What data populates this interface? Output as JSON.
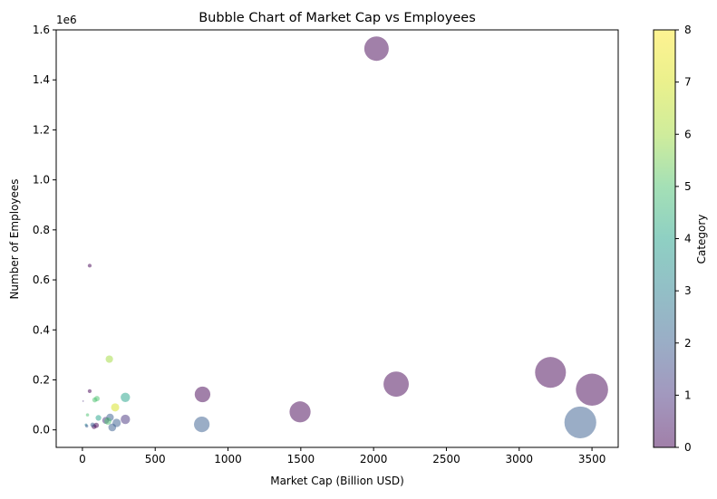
{
  "chart_data": {
    "type": "scatter",
    "title": "Bubble Chart of Market Cap vs Employees",
    "xlabel": "Market Cap (Billion USD)",
    "ylabel": "Number of Employees",
    "y_offset_label": "1e6",
    "xlim": [
      -180,
      3680
    ],
    "ylim": [
      -70000,
      1600000
    ],
    "xticks": [
      0,
      500,
      1000,
      1500,
      2000,
      2500,
      3000,
      3500
    ],
    "xtick_labels": [
      "0",
      "500",
      "1000",
      "1500",
      "2000",
      "2500",
      "3000",
      "3500"
    ],
    "yticks": [
      0,
      200000,
      400000,
      600000,
      800000,
      1000000,
      1200000,
      1400000,
      1600000
    ],
    "ytick_labels": [
      "0.0",
      "0.2",
      "0.4",
      "0.6",
      "0.8",
      "1.0",
      "1.2",
      "1.4",
      "1.6"
    ],
    "grid": false,
    "colorbar": {
      "label": "Category",
      "range": [
        0,
        8
      ],
      "ticks": [
        0,
        1,
        2,
        3,
        4,
        5,
        6,
        7,
        8
      ],
      "colormap": "viridis",
      "alpha": 0.5
    },
    "size_encoding": "market_cap",
    "points": [
      {
        "x": 2020,
        "y": 1525000,
        "category": 0
      },
      {
        "x": 3215,
        "y": 230000,
        "category": 0
      },
      {
        "x": 3500,
        "y": 161000,
        "category": 0
      },
      {
        "x": 2155,
        "y": 183000,
        "category": 0
      },
      {
        "x": 1495,
        "y": 72000,
        "category": 0
      },
      {
        "x": 825,
        "y": 142000,
        "category": 0
      },
      {
        "x": 3420,
        "y": 30000,
        "category": 2
      },
      {
        "x": 820,
        "y": 22000,
        "category": 2
      },
      {
        "x": 295,
        "y": 130000,
        "category": 4
      },
      {
        "x": 295,
        "y": 42000,
        "category": 1
      },
      {
        "x": 225,
        "y": 90000,
        "category": 7
      },
      {
        "x": 185,
        "y": 283000,
        "category": 6
      },
      {
        "x": 235,
        "y": 28000,
        "category": 2
      },
      {
        "x": 190,
        "y": 50000,
        "category": 2
      },
      {
        "x": 205,
        "y": 10000,
        "category": 2
      },
      {
        "x": 160,
        "y": 38000,
        "category": 1
      },
      {
        "x": 175,
        "y": 35000,
        "category": 5
      },
      {
        "x": 110,
        "y": 48000,
        "category": 4
      },
      {
        "x": 100,
        "y": 125000,
        "category": 5
      },
      {
        "x": 85,
        "y": 120000,
        "category": 5
      },
      {
        "x": 95,
        "y": 18000,
        "category": 0
      },
      {
        "x": 80,
        "y": 13000,
        "category": 0
      },
      {
        "x": 70,
        "y": 20000,
        "category": 2
      },
      {
        "x": 50,
        "y": 657000,
        "category": 0
      },
      {
        "x": 50,
        "y": 155000,
        "category": 0
      },
      {
        "x": 35,
        "y": 60000,
        "category": 5
      },
      {
        "x": 25,
        "y": 20000,
        "category": 3
      },
      {
        "x": 30,
        "y": 15000,
        "category": 2
      },
      {
        "x": 5,
        "y": 115000,
        "category": 1
      }
    ]
  }
}
